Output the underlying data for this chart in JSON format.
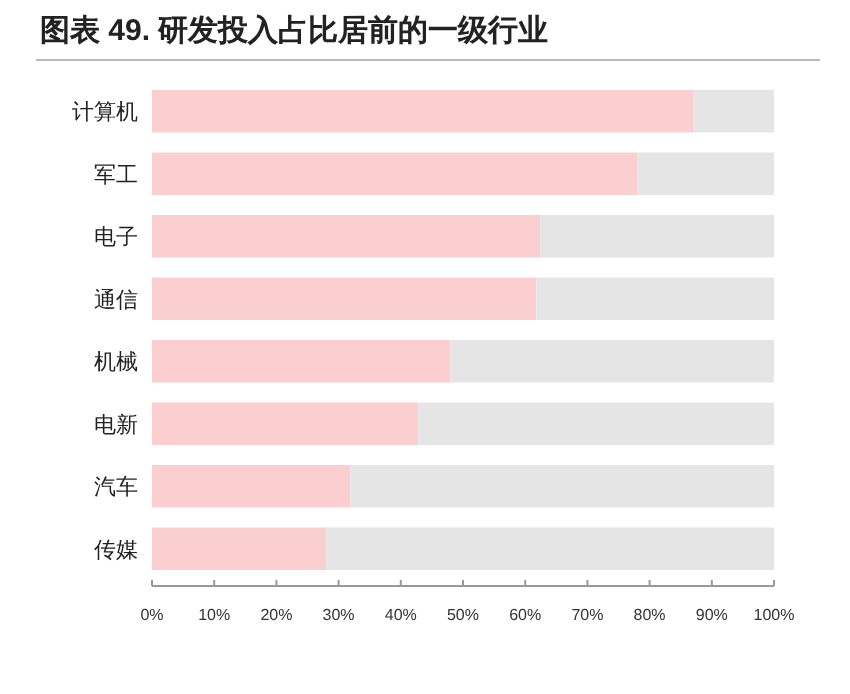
{
  "chart_data": {
    "type": "bar",
    "orientation": "horizontal",
    "stacked": true,
    "title": "图表 49. 研发投入占比居前的一级行业",
    "categories": [
      "计算机",
      "军工",
      "电子",
      "通信",
      "机械",
      "电新",
      "汽车",
      "传媒"
    ],
    "series": [
      {
        "color": "#fbcfcf",
        "values": [
          87,
          78,
          62.4,
          61.8,
          48,
          42.8,
          31.9,
          28
        ]
      },
      {
        "color": "#e5e5e5",
        "values": [
          13,
          22,
          37.6,
          38.2,
          52,
          57.2,
          68.1,
          72
        ]
      }
    ],
    "xlim": [
      0,
      100
    ],
    "xticks": [
      {
        "value": 0,
        "label": "0%"
      },
      {
        "value": 10,
        "label": "10%"
      },
      {
        "value": 20,
        "label": "20%"
      },
      {
        "value": 30,
        "label": "30%"
      },
      {
        "value": 40,
        "label": "40%"
      },
      {
        "value": 50,
        "label": "50%"
      },
      {
        "value": 60,
        "label": "60%"
      },
      {
        "value": 70,
        "label": "70%"
      },
      {
        "value": 80,
        "label": "80%"
      },
      {
        "value": 90,
        "label": "90%"
      },
      {
        "value": 100,
        "label": "100%"
      }
    ]
  }
}
